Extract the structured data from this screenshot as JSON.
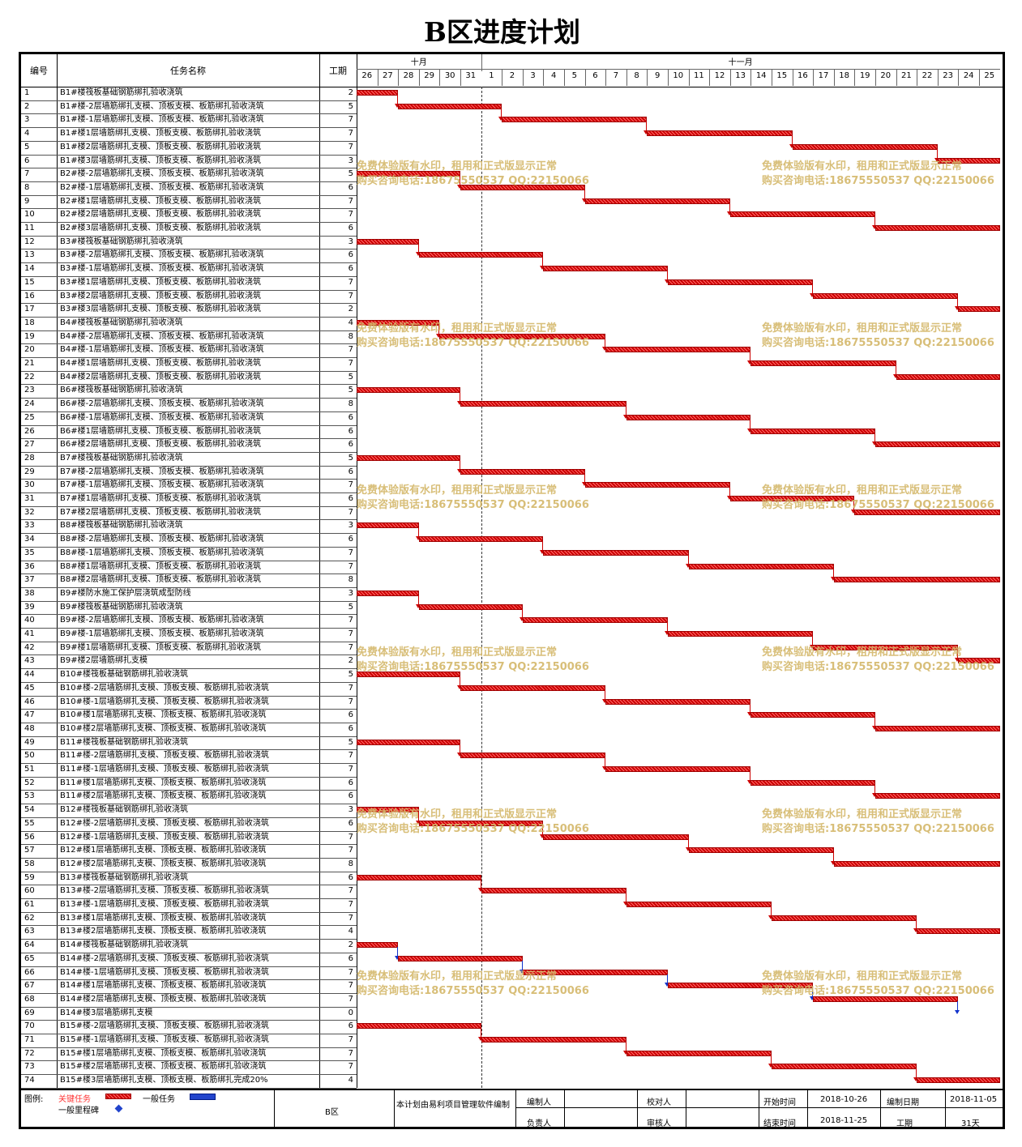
{
  "title": "B区进度计划",
  "header": {
    "col_id": "编号",
    "col_name": "任务名称",
    "col_days": "工期",
    "months": [
      {
        "label": "十月",
        "from": 0,
        "to": 6
      },
      {
        "label": "十一月",
        "from": 6,
        "to": 31
      }
    ],
    "days": [
      "26",
      "27",
      "28",
      "29",
      "30",
      "31",
      "1",
      "2",
      "3",
      "4",
      "5",
      "6",
      "7",
      "8",
      "9",
      "10",
      "11",
      "12",
      "13",
      "14",
      "15",
      "16",
      "17",
      "18",
      "19",
      "20",
      "21",
      "22",
      "23",
      "24",
      "25"
    ]
  },
  "tasks": [
    {
      "id": "1",
      "name": "B1#楼筏板基础钢筋绑扎验收浇筑",
      "days": "2",
      "start": 0,
      "dur": 2
    },
    {
      "id": "2",
      "name": "B1#楼-2层墙筋绑扎支模、顶板支模、板筋绑扎验收浇筑",
      "days": "5",
      "start": 2,
      "dur": 5
    },
    {
      "id": "3",
      "name": "B1#楼-1层墙筋绑扎支模、顶板支模、板筋绑扎验收浇筑",
      "days": "7",
      "start": 7,
      "dur": 7
    },
    {
      "id": "4",
      "name": "B1#楼1层墙筋绑扎支模、顶板支模、板筋绑扎验收浇筑",
      "days": "7",
      "start": 14,
      "dur": 7
    },
    {
      "id": "5",
      "name": "B1#楼2层墙筋绑扎支模、顶板支模、板筋绑扎验收浇筑",
      "days": "7",
      "start": 21,
      "dur": 7
    },
    {
      "id": "6",
      "name": "B1#楼3层墙筋绑扎支模、顶板支模、板筋绑扎验收浇筑",
      "days": "3",
      "start": 28,
      "dur": 3
    },
    {
      "id": "7",
      "name": "B2#楼-2层墙筋绑扎支模、顶板支模、板筋绑扎验收浇筑",
      "days": "5",
      "start": 0,
      "dur": 5
    },
    {
      "id": "8",
      "name": "B2#楼-1层墙筋绑扎支模、顶板支模、板筋绑扎验收浇筑",
      "days": "6",
      "start": 5,
      "dur": 6
    },
    {
      "id": "9",
      "name": "B2#楼1层墙筋绑扎支模、顶板支模、板筋绑扎验收浇筑",
      "days": "7",
      "start": 11,
      "dur": 7
    },
    {
      "id": "10",
      "name": "B2#楼2层墙筋绑扎支模、顶板支模、板筋绑扎验收浇筑",
      "days": "7",
      "start": 18,
      "dur": 7
    },
    {
      "id": "11",
      "name": "B2#楼3层墙筋绑扎支模、顶板支模、板筋绑扎验收浇筑",
      "days": "6",
      "start": 25,
      "dur": 6
    },
    {
      "id": "12",
      "name": "B3#楼筏板基础钢筋绑扎验收浇筑",
      "days": "3",
      "start": 0,
      "dur": 3
    },
    {
      "id": "13",
      "name": "B3#楼-2层墙筋绑扎支模、顶板支模、板筋绑扎验收浇筑",
      "days": "6",
      "start": 3,
      "dur": 6
    },
    {
      "id": "14",
      "name": "B3#楼-1层墙筋绑扎支模、顶板支模、板筋绑扎验收浇筑",
      "days": "6",
      "start": 9,
      "dur": 6
    },
    {
      "id": "15",
      "name": "B3#楼1层墙筋绑扎支模、顶板支模、板筋绑扎验收浇筑",
      "days": "7",
      "start": 15,
      "dur": 7
    },
    {
      "id": "16",
      "name": "B3#楼2层墙筋绑扎支模、顶板支模、板筋绑扎验收浇筑",
      "days": "7",
      "start": 22,
      "dur": 7
    },
    {
      "id": "17",
      "name": "B3#楼3层墙筋绑扎支模、顶板支模、板筋绑扎验收浇筑",
      "days": "2",
      "start": 29,
      "dur": 2
    },
    {
      "id": "18",
      "name": "B4#楼筏板基础钢筋绑扎验收浇筑",
      "days": "4",
      "start": 0,
      "dur": 4
    },
    {
      "id": "19",
      "name": "B4#楼-2层墙筋绑扎支模、顶板支模、板筋绑扎验收浇筑",
      "days": "8",
      "start": 4,
      "dur": 8
    },
    {
      "id": "20",
      "name": "B4#楼-1层墙筋绑扎支模、顶板支模、板筋绑扎验收浇筑",
      "days": "7",
      "start": 12,
      "dur": 7
    },
    {
      "id": "21",
      "name": "B4#楼1层墙筋绑扎支模、顶板支模、板筋绑扎验收浇筑",
      "days": "7",
      "start": 19,
      "dur": 7
    },
    {
      "id": "22",
      "name": "B4#楼2层墙筋绑扎支模、顶板支模、板筋绑扎验收浇筑",
      "days": "5",
      "start": 26,
      "dur": 5
    },
    {
      "id": "23",
      "name": "B6#楼筏板基础钢筋绑扎验收浇筑",
      "days": "5",
      "start": 0,
      "dur": 5
    },
    {
      "id": "24",
      "name": "B6#楼-2层墙筋绑扎支模、顶板支模、板筋绑扎验收浇筑",
      "days": "8",
      "start": 5,
      "dur": 8
    },
    {
      "id": "25",
      "name": "B6#楼-1层墙筋绑扎支模、顶板支模、板筋绑扎验收浇筑",
      "days": "6",
      "start": 13,
      "dur": 6
    },
    {
      "id": "26",
      "name": "B6#楼1层墙筋绑扎支模、顶板支模、板筋绑扎验收浇筑",
      "days": "6",
      "start": 19,
      "dur": 6
    },
    {
      "id": "27",
      "name": "B6#楼2层墙筋绑扎支模、顶板支模、板筋绑扎验收浇筑",
      "days": "6",
      "start": 25,
      "dur": 6
    },
    {
      "id": "28",
      "name": "B7#楼筏板基础钢筋绑扎验收浇筑",
      "days": "5",
      "start": 0,
      "dur": 5
    },
    {
      "id": "29",
      "name": "B7#楼-2层墙筋绑扎支模、顶板支模、板筋绑扎验收浇筑",
      "days": "6",
      "start": 5,
      "dur": 6
    },
    {
      "id": "30",
      "name": "B7#楼-1层墙筋绑扎支模、顶板支模、板筋绑扎验收浇筑",
      "days": "7",
      "start": 11,
      "dur": 7
    },
    {
      "id": "31",
      "name": "B7#楼1层墙筋绑扎支模、顶板支模、板筋绑扎验收浇筑",
      "days": "6",
      "start": 18,
      "dur": 6
    },
    {
      "id": "32",
      "name": "B7#楼2层墙筋绑扎支模、顶板支模、板筋绑扎验收浇筑",
      "days": "7",
      "start": 24,
      "dur": 7
    },
    {
      "id": "33",
      "name": "B8#楼筏板基础钢筋绑扎验收浇筑",
      "days": "3",
      "start": 0,
      "dur": 3
    },
    {
      "id": "34",
      "name": "B8#楼-2层墙筋绑扎支模、顶板支模、板筋绑扎验收浇筑",
      "days": "6",
      "start": 3,
      "dur": 6
    },
    {
      "id": "35",
      "name": "B8#楼-1层墙筋绑扎支模、顶板支模、板筋绑扎验收浇筑",
      "days": "7",
      "start": 9,
      "dur": 7
    },
    {
      "id": "36",
      "name": "B8#楼1层墙筋绑扎支模、顶板支模、板筋绑扎验收浇筑",
      "days": "7",
      "start": 16,
      "dur": 7
    },
    {
      "id": "37",
      "name": "B8#楼2层墙筋绑扎支模、顶板支模、板筋绑扎验收浇筑",
      "days": "8",
      "start": 23,
      "dur": 8
    },
    {
      "id": "38",
      "name": "B9#楼防水施工保护层浇筑成型防线",
      "days": "3",
      "start": 0,
      "dur": 3
    },
    {
      "id": "39",
      "name": "B9#楼筏板基础钢筋绑扎验收浇筑",
      "days": "5",
      "start": 3,
      "dur": 5
    },
    {
      "id": "40",
      "name": "B9#楼-2层墙筋绑扎支模、顶板支模、板筋绑扎验收浇筑",
      "days": "7",
      "start": 8,
      "dur": 7
    },
    {
      "id": "41",
      "name": "B9#楼-1层墙筋绑扎支模、顶板支模、板筋绑扎验收浇筑",
      "days": "7",
      "start": 15,
      "dur": 7
    },
    {
      "id": "42",
      "name": "B9#楼1层墙筋绑扎支模、顶板支模、板筋绑扎验收浇筑",
      "days": "7",
      "start": 22,
      "dur": 7
    },
    {
      "id": "43",
      "name": "B9#楼2层墙筋绑扎支模",
      "days": "2",
      "start": 29,
      "dur": 2
    },
    {
      "id": "44",
      "name": "B10#楼筏板基础钢筋绑扎验收浇筑",
      "days": "5",
      "start": 0,
      "dur": 5
    },
    {
      "id": "45",
      "name": "B10#楼-2层墙筋绑扎支模、顶板支模、板筋绑扎验收浇筑",
      "days": "7",
      "start": 5,
      "dur": 7
    },
    {
      "id": "46",
      "name": "B10#楼-1层墙筋绑扎支模、顶板支模、板筋绑扎验收浇筑",
      "days": "7",
      "start": 12,
      "dur": 7
    },
    {
      "id": "47",
      "name": "B10#楼1层墙筋绑扎支模、顶板支模、板筋绑扎验收浇筑",
      "days": "6",
      "start": 19,
      "dur": 6
    },
    {
      "id": "48",
      "name": "B10#楼2层墙筋绑扎支模、顶板支模、板筋绑扎验收浇筑",
      "days": "6",
      "start": 25,
      "dur": 6
    },
    {
      "id": "49",
      "name": "B11#楼筏板基础钢筋绑扎验收浇筑",
      "days": "5",
      "start": 0,
      "dur": 5
    },
    {
      "id": "50",
      "name": "B11#楼-2层墙筋绑扎支模、顶板支模、板筋绑扎验收浇筑",
      "days": "7",
      "start": 5,
      "dur": 7
    },
    {
      "id": "51",
      "name": "B11#楼-1层墙筋绑扎支模、顶板支模、板筋绑扎验收浇筑",
      "days": "7",
      "start": 12,
      "dur": 7
    },
    {
      "id": "52",
      "name": "B11#楼1层墙筋绑扎支模、顶板支模、板筋绑扎验收浇筑",
      "days": "6",
      "start": 19,
      "dur": 6
    },
    {
      "id": "53",
      "name": "B11#楼2层墙筋绑扎支模、顶板支模、板筋绑扎验收浇筑",
      "days": "6",
      "start": 25,
      "dur": 6
    },
    {
      "id": "54",
      "name": "B12#楼筏板基础钢筋绑扎验收浇筑",
      "days": "3",
      "start": 0,
      "dur": 3
    },
    {
      "id": "55",
      "name": "B12#楼-2层墙筋绑扎支模、顶板支模、板筋绑扎验收浇筑",
      "days": "6",
      "start": 3,
      "dur": 6
    },
    {
      "id": "56",
      "name": "B12#楼-1层墙筋绑扎支模、顶板支模、板筋绑扎验收浇筑",
      "days": "7",
      "start": 9,
      "dur": 7
    },
    {
      "id": "57",
      "name": "B12#楼1层墙筋绑扎支模、顶板支模、板筋绑扎验收浇筑",
      "days": "7",
      "start": 16,
      "dur": 7
    },
    {
      "id": "58",
      "name": "B12#楼2层墙筋绑扎支模、顶板支模、板筋绑扎验收浇筑",
      "days": "8",
      "start": 23,
      "dur": 8
    },
    {
      "id": "59",
      "name": "B13#楼筏板基础钢筋绑扎验收浇筑",
      "days": "6",
      "start": 0,
      "dur": 6
    },
    {
      "id": "60",
      "name": "B13#楼-2层墙筋绑扎支模、顶板支模、板筋绑扎验收浇筑",
      "days": "7",
      "start": 6,
      "dur": 7
    },
    {
      "id": "61",
      "name": "B13#楼-1层墙筋绑扎支模、顶板支模、板筋绑扎验收浇筑",
      "days": "7",
      "start": 13,
      "dur": 7
    },
    {
      "id": "62",
      "name": "B13#楼1层墙筋绑扎支模、顶板支模、板筋绑扎验收浇筑",
      "days": "7",
      "start": 20,
      "dur": 7
    },
    {
      "id": "63",
      "name": "B13#楼2层墙筋绑扎支模、顶板支模、板筋绑扎验收浇筑",
      "days": "4",
      "start": 27,
      "dur": 4
    },
    {
      "id": "64",
      "name": "B14#楼筏板基础钢筋绑扎验收浇筑",
      "days": "2",
      "start": 0,
      "dur": 2,
      "link": "blue"
    },
    {
      "id": "65",
      "name": "B14#楼-2层墙筋绑扎支模、顶板支模、板筋绑扎验收浇筑",
      "days": "6",
      "start": 2,
      "dur": 6,
      "link": "blue"
    },
    {
      "id": "66",
      "name": "B14#楼-1层墙筋绑扎支模、顶板支模、板筋绑扎验收浇筑",
      "days": "7",
      "start": 8,
      "dur": 7,
      "link": "blue"
    },
    {
      "id": "67",
      "name": "B14#楼1层墙筋绑扎支模、顶板支模、板筋绑扎验收浇筑",
      "days": "7",
      "start": 15,
      "dur": 7,
      "link": "blue"
    },
    {
      "id": "68",
      "name": "B14#楼2层墙筋绑扎支模、顶板支模、板筋绑扎验收浇筑",
      "days": "7",
      "start": 22,
      "dur": 7,
      "link": "blue"
    },
    {
      "id": "69",
      "name": "B14#楼3层墙筋绑扎支模",
      "days": "0",
      "start": 29,
      "dur": 0
    },
    {
      "id": "70",
      "name": "B15#楼-2层墙筋绑扎支模、顶板支模、板筋绑扎验收浇筑",
      "days": "6",
      "start": 0,
      "dur": 6
    },
    {
      "id": "71",
      "name": "B15#楼-1层墙筋绑扎支模、顶板支模、板筋绑扎验收浇筑",
      "days": "7",
      "start": 6,
      "dur": 7
    },
    {
      "id": "72",
      "name": "B15#楼1层墙筋绑扎支模、顶板支模、板筋绑扎验收浇筑",
      "days": "7",
      "start": 13,
      "dur": 7
    },
    {
      "id": "73",
      "name": "B15#楼2层墙筋绑扎支模、顶板支模、板筋绑扎验收浇筑",
      "days": "7",
      "start": 20,
      "dur": 7
    },
    {
      "id": "74",
      "name": "B15#楼3层墙筋绑扎支模、顶板支模、板筋绑扎完成20%",
      "days": "4",
      "start": 27,
      "dur": 4
    }
  ],
  "watermark": {
    "line1": "免费体验版有水印，租用和正式版显示正常",
    "line2": "购买咨询电话:18675550537 QQ:22150066"
  },
  "footer": {
    "legend_label": "图例:",
    "critical_label": "关键任务",
    "normal_label": "一般任务",
    "milestone_label": "一般里程碑",
    "area": "B区",
    "software_note": "本计划由易利项目管理软件编制",
    "editor_label": "编制人",
    "checker_label": "校对人",
    "leader_label": "负责人",
    "reviewer_label": "审核人",
    "start_label": "开始时间",
    "start_value": "2018-10-26",
    "end_label": "结束时间",
    "end_value": "2018-11-25",
    "date_label": "编制日期",
    "date_value": "2018-11-05",
    "duration_label": "工期",
    "duration_value": "31天",
    "colors": {
      "critical": "#ff3333",
      "normal": "#2244cc",
      "milestone": "#2244cc"
    }
  }
}
